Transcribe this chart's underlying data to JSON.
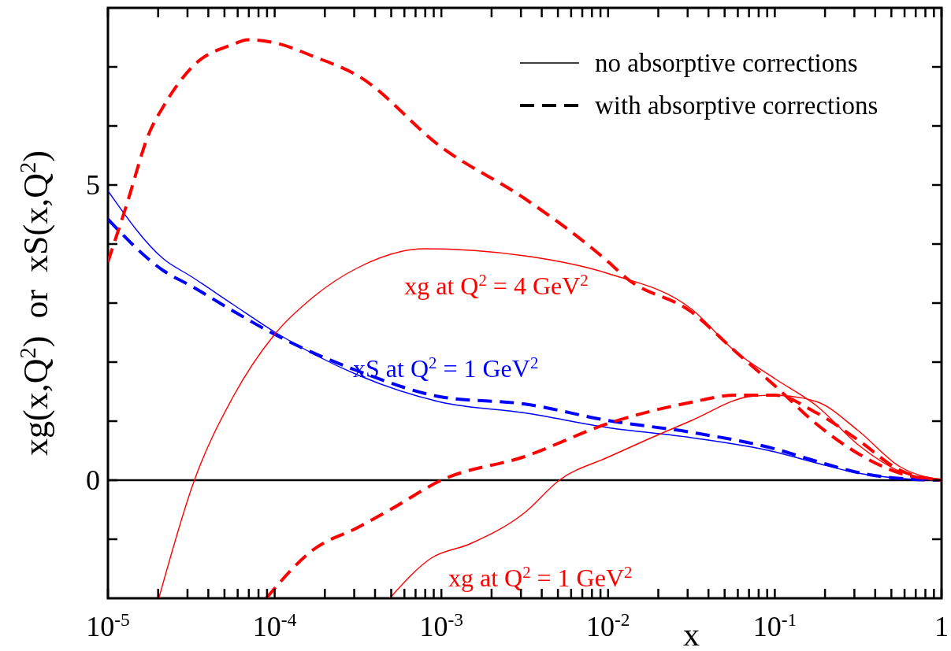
{
  "chart_data": {
    "type": "line",
    "xlabel": "x",
    "ylabel": "xg(x,Q$^{2}$)  or  xS(x,Q$^{2}$)",
    "log": "x",
    "xlim": [
      1e-05,
      1
    ],
    "ylim": [
      -2,
      8
    ],
    "xticks": [
      {
        "value": 1e-05,
        "label": "10$^{-5}$"
      },
      {
        "value": 2e-05,
        "label": null
      },
      {
        "value": 3e-05,
        "label": null
      },
      {
        "value": 4e-05,
        "label": null
      },
      {
        "value": 5e-05,
        "label": null
      },
      {
        "value": 6e-05,
        "label": null
      },
      {
        "value": 7e-05,
        "label": null
      },
      {
        "value": 8e-05,
        "label": null
      },
      {
        "value": 9e-05,
        "label": null
      },
      {
        "value": 0.0001,
        "label": "10$^{-4}$"
      },
      {
        "value": 0.0002,
        "label": null
      },
      {
        "value": 0.0003,
        "label": null
      },
      {
        "value": 0.0004,
        "label": null
      },
      {
        "value": 0.0005,
        "label": null
      },
      {
        "value": 0.0006,
        "label": null
      },
      {
        "value": 0.0007,
        "label": null
      },
      {
        "value": 0.0008,
        "label": null
      },
      {
        "value": 0.0009,
        "label": null
      },
      {
        "value": 0.001,
        "label": "10$^{-3}$"
      },
      {
        "value": 0.002,
        "label": null
      },
      {
        "value": 0.003,
        "label": null
      },
      {
        "value": 0.004,
        "label": null
      },
      {
        "value": 0.005,
        "label": null
      },
      {
        "value": 0.006,
        "label": null
      },
      {
        "value": 0.007,
        "label": null
      },
      {
        "value": 0.008,
        "label": null
      },
      {
        "value": 0.009,
        "label": null
      },
      {
        "value": 0.01,
        "label": "10$^{-2}$"
      },
      {
        "value": 0.02,
        "label": null
      },
      {
        "value": 0.03,
        "label": null
      },
      {
        "value": 0.04,
        "label": null
      },
      {
        "value": 0.05,
        "label": null
      },
      {
        "value": 0.06,
        "label": null
      },
      {
        "value": 0.07,
        "label": null
      },
      {
        "value": 0.08,
        "label": null
      },
      {
        "value": 0.09,
        "label": null
      },
      {
        "value": 0.1,
        "label": "10$^{-1}$"
      },
      {
        "value": 0.2,
        "label": null
      },
      {
        "value": 0.3,
        "label": null
      },
      {
        "value": 0.4,
        "label": null
      },
      {
        "value": 0.5,
        "label": null
      },
      {
        "value": 0.6,
        "label": null
      },
      {
        "value": 0.7,
        "label": null
      },
      {
        "value": 0.8,
        "label": null
      },
      {
        "value": 0.9,
        "label": null
      },
      {
        "value": 1,
        "label": "1"
      }
    ],
    "yticks": [
      {
        "value": -1,
        "label": null
      },
      0,
      {
        "value": 1,
        "label": null
      },
      {
        "value": 2,
        "label": null
      },
      {
        "value": 3,
        "label": null
      },
      {
        "value": 4,
        "label": null
      },
      5,
      {
        "value": 6,
        "label": null
      },
      {
        "value": 7,
        "label": null
      }
    ],
    "ref_lines": [
      {
        "axis": "y",
        "value": 0,
        "color": "#000000"
      }
    ],
    "annotations": [
      "no absorptive corrections",
      "with absorptive corrections",
      "xS at Q$^{2}$ = 1 GeV$^{2}$",
      "xg at Q$^{2}$ = 4 GeV$^{2}$",
      "xg at Q$^{2}$ = 1 GeV$^{2}$"
    ],
    "series": [
      {
        "color": "#0000ff",
        "line_style": "solid",
        "x": [
          1e-05,
          2.15e-05,
          3.2e-05,
          5.6e-05,
          0.0001,
          0.000316,
          0.001,
          0.00316,
          0.01,
          0.0316,
          0.1,
          0.178,
          0.316,
          0.562,
          1
        ],
        "values": [
          4.9,
          3.75,
          3.44,
          2.98,
          2.51,
          1.78,
          1.32,
          1.14,
          0.89,
          0.72,
          0.48,
          0.29,
          0.12,
          0.03,
          0
        ]
      },
      {
        "color": "#0000ff",
        "line_style": "dashed",
        "x": [
          1e-05,
          2.15e-05,
          3.2e-05,
          5.6e-05,
          0.0001,
          0.000316,
          0.001,
          0.00316,
          0.01,
          0.0316,
          0.1,
          0.178,
          0.316,
          0.562,
          1
        ],
        "values": [
          4.42,
          3.55,
          3.28,
          2.87,
          2.47,
          1.85,
          1.41,
          1.29,
          1.01,
          0.81,
          0.53,
          0.32,
          0.13,
          0.03,
          0
        ]
      },
      {
        "color": "#ff0000",
        "line_style": "solid",
        "x": [
          2.02e-05,
          3.3e-05,
          5.6e-05,
          0.0001,
          0.00017,
          0.000316,
          0.00079,
          0.00316,
          0.01,
          0.0316,
          0.058,
          0.1,
          0.178,
          0.316,
          0.562,
          1
        ],
        "values": [
          -2,
          0,
          1.4,
          2.47,
          3.1,
          3.6,
          3.92,
          3.8,
          3.5,
          2.9,
          2.18,
          1.72,
          1.26,
          0.6,
          0.15,
          0
        ]
      },
      {
        "color": "#ff0000",
        "line_style": "dashed",
        "x": [
          1e-05,
          1.28e-05,
          1.78e-05,
          2.15e-05,
          3.2e-05,
          5.6e-05,
          6.9e-05,
          0.0001,
          0.00017,
          0.000316,
          0.001,
          0.00316,
          0.01,
          0.0129,
          0.0316,
          0.058,
          0.1,
          0.178,
          0.316,
          0.562,
          1
        ],
        "values": [
          3.7,
          4.62,
          5.9,
          6.33,
          7.0,
          7.38,
          7.46,
          7.41,
          7.18,
          6.85,
          5.64,
          4.77,
          3.7,
          3.42,
          2.85,
          2.18,
          1.6,
          0.95,
          0.45,
          0.12,
          0
        ]
      },
      {
        "color": "#ff0000",
        "line_style": "solid",
        "x": [
          0.00049,
          0.00087,
          0.00148,
          0.00316,
          0.0051,
          0.01,
          0.0316,
          0.072,
          0.1,
          0.178,
          0.316,
          0.562,
          1
        ],
        "values": [
          -2,
          -1.32,
          -1.08,
          -0.55,
          0,
          0.39,
          1.01,
          1.42,
          1.44,
          1.33,
          0.84,
          0.23,
          0
        ]
      },
      {
        "color": "#ff0000",
        "line_style": "dashed",
        "x": [
          8.9e-05,
          0.00017,
          0.000316,
          0.0005,
          0.001,
          0.00316,
          0.01,
          0.0316,
          0.058,
          0.1,
          0.178,
          0.316,
          0.562,
          1
        ],
        "values": [
          -2,
          -1.18,
          -0.8,
          -0.49,
          0,
          0.4,
          0.96,
          1.32,
          1.44,
          1.44,
          1.14,
          0.68,
          0.17,
          0
        ]
      }
    ]
  }
}
